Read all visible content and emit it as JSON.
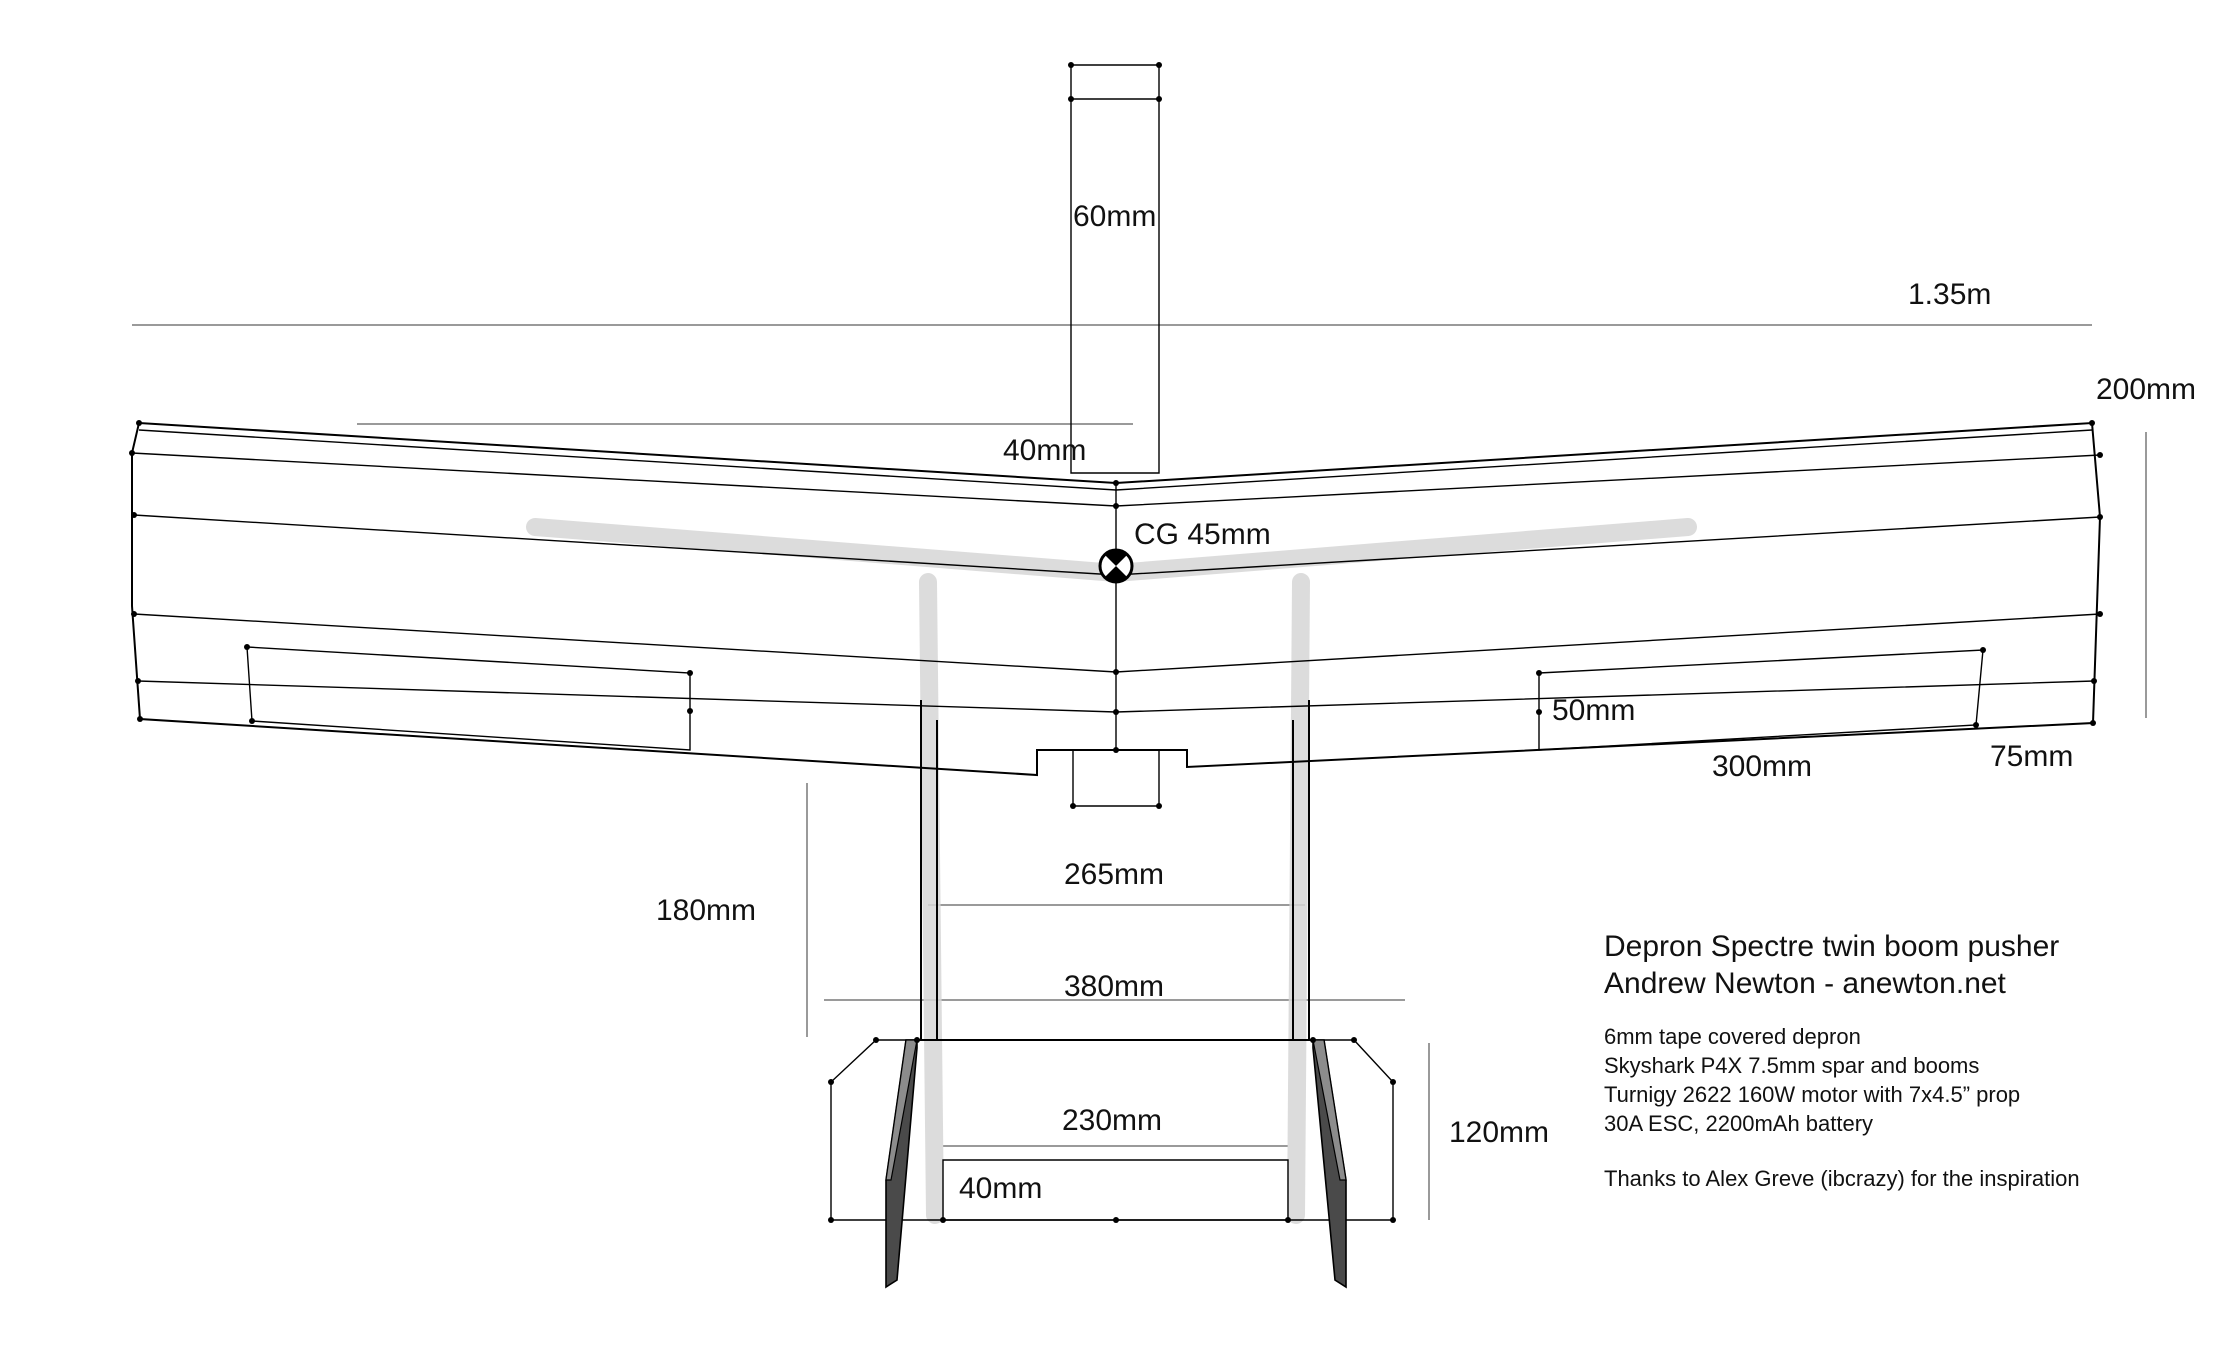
{
  "labels": {
    "fin_length": "60mm",
    "span": "1.35m",
    "root_chord": "200mm",
    "sweep": "40mm",
    "cg": "CG 45mm",
    "aileron_chord": "50mm",
    "aileron_length": "300mm",
    "tip_chord": "75mm",
    "boom_length": "180mm",
    "boom_spacing": "265mm",
    "tail_span": "380mm",
    "tail_chord": "120mm",
    "elevator_span": "230mm",
    "elevator_chord": "40mm"
  },
  "notes": {
    "title": "Depron Spectre twin boom pusher",
    "author": "Andrew Newton - anewton.net",
    "spec_1": "6mm tape covered depron",
    "spec_2": "Skyshark P4X 7.5mm spar and booms",
    "spec_3": "Turnigy 2622 160W motor with 7x4.5” prop",
    "spec_4": "30A ESC, 2200mAh battery",
    "thanks": "Thanks to Alex Greve (ibcrazy) for the inspiration"
  },
  "colors": {
    "line": "#000000",
    "guide": "#9a9a9a",
    "spar": "#d6d6d6",
    "fin_dark": "#4a4a4a",
    "fin_light": "#8c8c8c"
  }
}
